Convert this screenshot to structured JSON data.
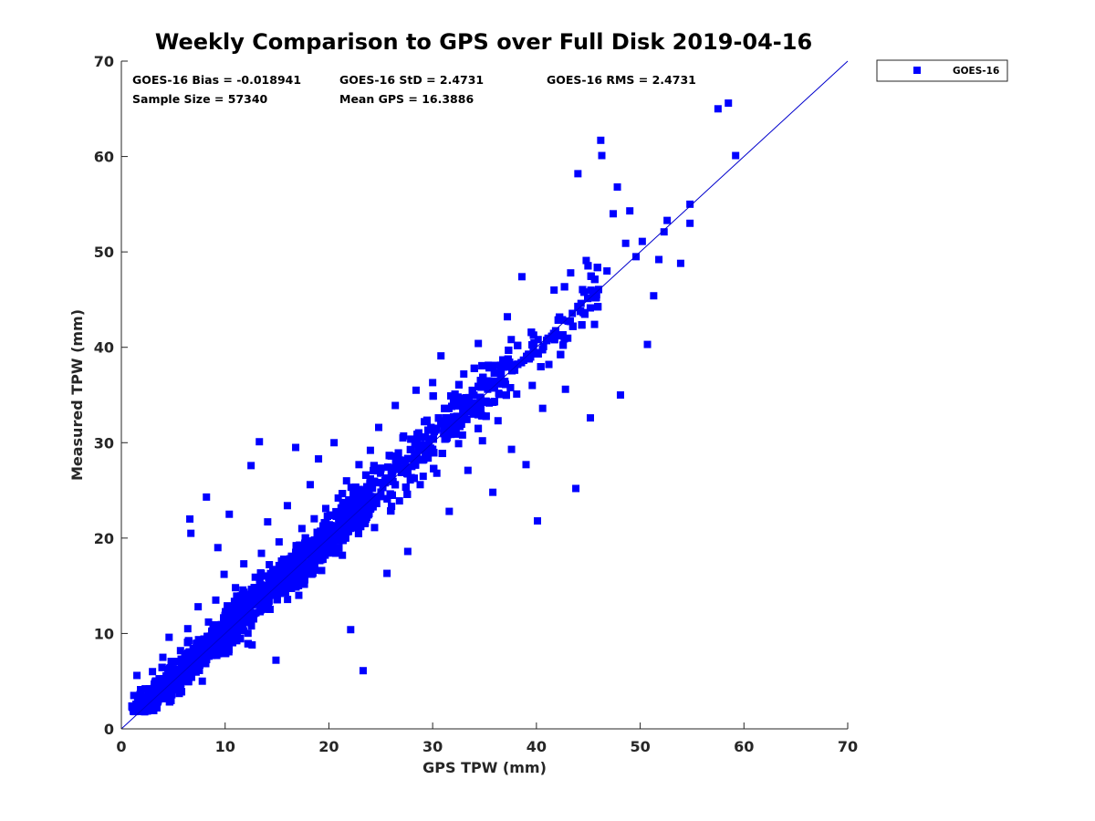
{
  "chart_data": {
    "type": "scatter",
    "title": "Weekly Comparison to GPS over Full Disk 2019-04-16",
    "xlabel": "GPS TPW (mm)",
    "ylabel": "Measured TPW (mm)",
    "xlim": [
      0,
      70
    ],
    "ylim": [
      0,
      70
    ],
    "xticks": [
      "0",
      "10",
      "20",
      "30",
      "40",
      "50",
      "60",
      "70"
    ],
    "yticks": [
      "0",
      "10",
      "20",
      "30",
      "40",
      "50",
      "60",
      "70"
    ],
    "grid": false,
    "legend_position": "outside-top-right",
    "marker_color": "#0000ff",
    "stats": {
      "bias": "GOES-16 Bias = -0.018941",
      "std": "GOES-16 StD = 2.4731",
      "rms": "GOES-16 RMS = 2.4731",
      "sample": "Sample Size = 57340",
      "mean": "Mean GPS = 16.3886"
    },
    "reference_line": {
      "x": [
        0,
        70
      ],
      "y": [
        0,
        70
      ]
    },
    "series": [
      {
        "name": "GOES-16",
        "points": [
          [
            1.2,
            3.5
          ],
          [
            1.5,
            5.6
          ],
          [
            2.0,
            2.5
          ],
          [
            2.3,
            4.2
          ],
          [
            2.8,
            3.8
          ],
          [
            3.0,
            6.0
          ],
          [
            3.3,
            2.9
          ],
          [
            3.8,
            5.1
          ],
          [
            4.0,
            7.5
          ],
          [
            4.3,
            3.4
          ],
          [
            4.6,
            9.6
          ],
          [
            5.0,
            6.3
          ],
          [
            5.3,
            4.6
          ],
          [
            5.7,
            8.2
          ],
          [
            6.0,
            5.5
          ],
          [
            6.4,
            10.5
          ],
          [
            6.6,
            22.0
          ],
          [
            6.7,
            20.5
          ],
          [
            7.0,
            7.0
          ],
          [
            7.4,
            12.8
          ],
          [
            7.8,
            5.0
          ],
          [
            8.0,
            9.4
          ],
          [
            8.2,
            24.3
          ],
          [
            8.4,
            11.2
          ],
          [
            8.8,
            7.8
          ],
          [
            9.1,
            13.5
          ],
          [
            9.3,
            19.0
          ],
          [
            9.5,
            10.0
          ],
          [
            9.9,
            16.2
          ],
          [
            10.2,
            8.4
          ],
          [
            10.4,
            22.5
          ],
          [
            10.6,
            12.6
          ],
          [
            11.0,
            14.8
          ],
          [
            11.4,
            10.7
          ],
          [
            11.8,
            17.3
          ],
          [
            12.2,
            12.0
          ],
          [
            12.5,
            27.6
          ],
          [
            12.6,
            8.8
          ],
          [
            12.9,
            15.9
          ],
          [
            13.3,
            30.1
          ],
          [
            13.5,
            18.4
          ],
          [
            13.8,
            13.2
          ],
          [
            14.1,
            21.7
          ],
          [
            14.5,
            16.0
          ],
          [
            14.9,
            7.2
          ],
          [
            15.2,
            19.6
          ],
          [
            15.6,
            15.3
          ],
          [
            16.0,
            23.4
          ],
          [
            16.4,
            18.1
          ],
          [
            16.8,
            29.5
          ],
          [
            17.1,
            14.0
          ],
          [
            17.4,
            21.0
          ],
          [
            17.8,
            17.0
          ],
          [
            18.2,
            25.6
          ],
          [
            18.6,
            19.8
          ],
          [
            19.0,
            28.3
          ],
          [
            19.3,
            16.6
          ],
          [
            19.7,
            23.1
          ],
          [
            20.1,
            20.3
          ],
          [
            20.5,
            30.0
          ],
          [
            20.9,
            24.2
          ],
          [
            21.3,
            18.2
          ],
          [
            21.7,
            26.0
          ],
          [
            22.1,
            10.4
          ],
          [
            22.5,
            22.1
          ],
          [
            22.9,
            27.7
          ],
          [
            23.3,
            6.1
          ],
          [
            23.6,
            24.4
          ],
          [
            24.0,
            29.2
          ],
          [
            24.4,
            21.1
          ],
          [
            24.8,
            31.6
          ],
          [
            25.2,
            25.3
          ],
          [
            25.6,
            16.3
          ],
          [
            26.0,
            28.6
          ],
          [
            26.4,
            33.9
          ],
          [
            26.8,
            23.9
          ],
          [
            27.2,
            30.7
          ],
          [
            27.6,
            18.6
          ],
          [
            28.0,
            27.5
          ],
          [
            28.4,
            35.5
          ],
          [
            28.8,
            25.6
          ],
          [
            29.2,
            32.2
          ],
          [
            29.6,
            29.0
          ],
          [
            30.0,
            36.3
          ],
          [
            30.4,
            26.8
          ],
          [
            30.8,
            39.1
          ],
          [
            31.2,
            31.1
          ],
          [
            31.6,
            22.8
          ],
          [
            32.0,
            34.4
          ],
          [
            32.5,
            29.9
          ],
          [
            33.0,
            37.2
          ],
          [
            33.4,
            27.1
          ],
          [
            33.9,
            33.0
          ],
          [
            34.4,
            40.4
          ],
          [
            34.8,
            30.2
          ],
          [
            35.3,
            35.6
          ],
          [
            35.8,
            24.8
          ],
          [
            36.3,
            32.3
          ],
          [
            36.8,
            38.5
          ],
          [
            37.2,
            43.2
          ],
          [
            37.6,
            29.3
          ],
          [
            38.1,
            35.1
          ],
          [
            38.6,
            47.4
          ],
          [
            39.0,
            27.7
          ],
          [
            39.6,
            36.0
          ],
          [
            40.1,
            21.8
          ],
          [
            40.6,
            33.6
          ],
          [
            41.2,
            38.2
          ],
          [
            41.7,
            46.0
          ],
          [
            42.3,
            41.2
          ],
          [
            42.8,
            35.6
          ],
          [
            43.3,
            47.8
          ],
          [
            43.8,
            25.2
          ],
          [
            44.0,
            58.2
          ],
          [
            44.3,
            44.6
          ],
          [
            44.8,
            49.1
          ],
          [
            45.2,
            32.6
          ],
          [
            45.6,
            42.4
          ],
          [
            46.2,
            61.7
          ],
          [
            46.3,
            60.1
          ],
          [
            46.8,
            48.0
          ],
          [
            47.4,
            54.0
          ],
          [
            47.8,
            56.8
          ],
          [
            48.1,
            35.0
          ],
          [
            48.6,
            50.9
          ],
          [
            49.0,
            54.3
          ],
          [
            49.6,
            49.5
          ],
          [
            50.2,
            51.1
          ],
          [
            50.7,
            40.3
          ],
          [
            51.3,
            45.4
          ],
          [
            51.8,
            49.2
          ],
          [
            52.3,
            52.1
          ],
          [
            52.6,
            53.3
          ],
          [
            53.9,
            48.8
          ],
          [
            54.8,
            53.0
          ],
          [
            54.8,
            55.0
          ],
          [
            57.5,
            65.0
          ],
          [
            58.5,
            65.6
          ],
          [
            59.2,
            60.1
          ]
        ]
      }
    ]
  }
}
